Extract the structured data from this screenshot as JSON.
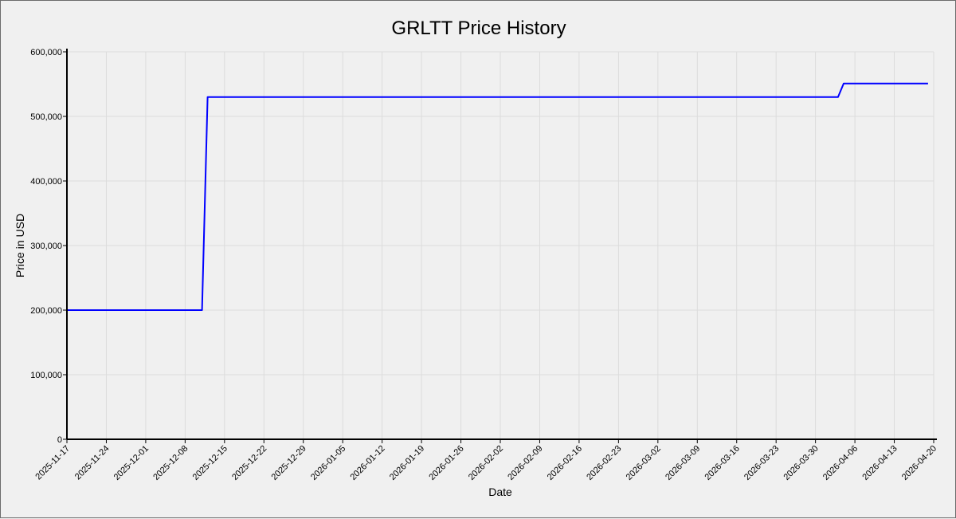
{
  "chart_data": {
    "type": "line",
    "title": "GRLTT Price History",
    "xlabel": "Date",
    "ylabel": "Price in USD",
    "ylim": [
      0,
      600000
    ],
    "xlim": [
      "2025-11-17",
      "2026-04-20"
    ],
    "grid": true,
    "y_ticks": [
      0,
      100000,
      200000,
      300000,
      400000,
      500000,
      600000
    ],
    "y_tick_labels": [
      "0",
      "100,000",
      "200,000",
      "300,000",
      "400,000",
      "500,000",
      "600,000"
    ],
    "x_tick_labels": [
      "2025-11-17",
      "2025-11-24",
      "2025-12-01",
      "2025-12-08",
      "2025-12-15",
      "2025-12-22",
      "2025-12-29",
      "2026-01-05",
      "2026-01-12",
      "2026-01-19",
      "2026-01-26",
      "2026-02-02",
      "2026-02-09",
      "2026-02-16",
      "2026-02-23",
      "2026-03-02",
      "2026-03-09",
      "2026-03-16",
      "2026-03-23",
      "2026-03-30",
      "2026-04-06",
      "2026-04-13",
      "2026-04-20"
    ],
    "series": [
      {
        "color": "#0000ff",
        "points": [
          {
            "x": "2025-11-17",
            "y": 200000
          },
          {
            "x": "2025-12-11",
            "y": 200000
          },
          {
            "x": "2025-12-12",
            "y": 530000
          },
          {
            "x": "2026-04-03",
            "y": 530000
          },
          {
            "x": "2026-04-04",
            "y": 551000
          },
          {
            "x": "2026-04-19",
            "y": 551000
          }
        ]
      }
    ]
  }
}
